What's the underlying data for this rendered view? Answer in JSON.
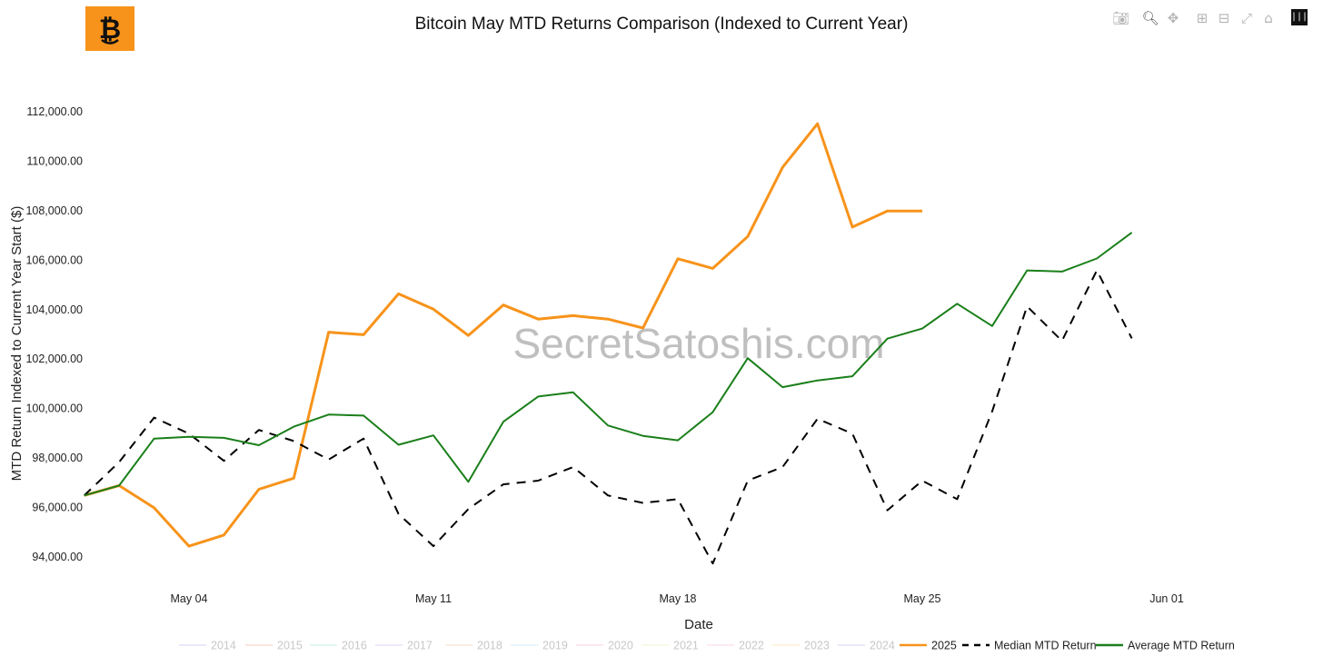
{
  "title": "Bitcoin May MTD Returns Comparison (Indexed to Current Year)",
  "watermark": "SecretSatoshis.com",
  "modebar": {
    "buttons": [
      "camera-icon",
      "zoom-icon",
      "pan-icon",
      "zoom-in-icon",
      "zoom-out-icon",
      "autoscale-icon",
      "reset-axes-icon",
      "plotly-logo-icon"
    ]
  },
  "chart_data": {
    "type": "line",
    "title": "Bitcoin May MTD Returns Comparison (Indexed to Current Year)",
    "xlabel": "Date",
    "ylabel": "MTD Return Indexed to Current Year Start ($)",
    "x_range_days": [
      1,
      31
    ],
    "y_range": [
      93000,
      113800
    ],
    "x_ticks": [
      {
        "day": 4,
        "label": "May 04"
      },
      {
        "day": 11,
        "label": "May 11"
      },
      {
        "day": 18,
        "label": "May 18"
      },
      {
        "day": 25,
        "label": "May 25"
      },
      {
        "day": 32,
        "label": "Jun 01"
      }
    ],
    "y_ticks": [
      {
        "value": 94000,
        "label": "94,000.00"
      },
      {
        "value": 96000,
        "label": "96,000.00"
      },
      {
        "value": 98000,
        "label": "98,000.00"
      },
      {
        "value": 100000,
        "label": "100,000.00"
      },
      {
        "value": 102000,
        "label": "102,000.00"
      },
      {
        "value": 104000,
        "label": "104,000.00"
      },
      {
        "value": 106000,
        "label": "106,000.00"
      },
      {
        "value": 108000,
        "label": "108,000.00"
      },
      {
        "value": 110000,
        "label": "110,000.00"
      },
      {
        "value": 112000,
        "label": "112,000.00"
      }
    ],
    "legend_position": "bottom-center",
    "legend": [
      {
        "name": "2014",
        "color": "#c7c9f2",
        "style": "solid",
        "faded": true
      },
      {
        "name": "2015",
        "color": "#f6c1b0",
        "style": "solid",
        "faded": true
      },
      {
        "name": "2016",
        "color": "#b7ece0",
        "style": "solid",
        "faded": true
      },
      {
        "name": "2017",
        "color": "#d9c8f5",
        "style": "solid",
        "faded": true
      },
      {
        "name": "2018",
        "color": "#fbd7b9",
        "style": "solid",
        "faded": true
      },
      {
        "name": "2019",
        "color": "#c2ecf5",
        "style": "solid",
        "faded": true
      },
      {
        "name": "2020",
        "color": "#f8c9d6",
        "style": "solid",
        "faded": true
      },
      {
        "name": "2021",
        "color": "#e6f3c8",
        "style": "solid",
        "faded": true
      },
      {
        "name": "2022",
        "color": "#f6cce6",
        "style": "solid",
        "faded": true
      },
      {
        "name": "2023",
        "color": "#fbe3b4",
        "style": "solid",
        "faded": true
      },
      {
        "name": "2024",
        "color": "#c7c9f2",
        "style": "solid",
        "faded": true
      },
      {
        "name": "2025",
        "color": "#f7931a",
        "style": "solid",
        "faded": false
      },
      {
        "name": "Median MTD Return",
        "color": "#000000",
        "style": "dash",
        "faded": false
      },
      {
        "name": "Average MTD Return",
        "color": "#1a7f1a",
        "style": "solid",
        "faded": false
      }
    ],
    "series": [
      {
        "name": "2025",
        "color": "#f7931a",
        "width": 3,
        "dash": false,
        "x": [
          1,
          2,
          3,
          4,
          5,
          6,
          7,
          8,
          9,
          10,
          11,
          12,
          13,
          14,
          15,
          16,
          17,
          18,
          19,
          20,
          21,
          22,
          23,
          24,
          25
        ],
        "values": [
          96450,
          96850,
          95950,
          94400,
          94850,
          96700,
          97150,
          103050,
          102950,
          104600,
          103980,
          102920,
          104150,
          103580,
          103720,
          103580,
          103220,
          106020,
          105630,
          106920,
          109720,
          111480,
          107300,
          107950,
          107950
        ]
      },
      {
        "name": "Median MTD Return",
        "color": "#000000",
        "width": 2,
        "dash": true,
        "x": [
          1,
          2,
          3,
          4,
          5,
          6,
          7,
          8,
          9,
          10,
          11,
          12,
          13,
          14,
          15,
          16,
          17,
          18,
          19,
          20,
          21,
          22,
          23,
          24,
          25,
          26,
          27,
          28,
          29,
          30,
          31
        ],
        "values": [
          96450,
          97800,
          99600,
          98950,
          97850,
          99100,
          98650,
          97900,
          98750,
          95700,
          94400,
          95900,
          96900,
          97050,
          97600,
          96450,
          96150,
          96300,
          93700,
          97050,
          97600,
          99550,
          98950,
          95850,
          97050,
          96300,
          99850,
          104100,
          102700,
          105550,
          102800
        ]
      },
      {
        "name": "Average MTD Return",
        "color": "#1a7f1a",
        "width": 2,
        "dash": false,
        "x": [
          1,
          2,
          3,
          4,
          5,
          6,
          7,
          8,
          9,
          10,
          11,
          12,
          13,
          14,
          15,
          16,
          17,
          18,
          19,
          20,
          21,
          22,
          23,
          24,
          25,
          26,
          27,
          28,
          29,
          30,
          31
        ],
        "values": [
          96450,
          96850,
          98750,
          98820,
          98780,
          98480,
          99230,
          99720,
          99680,
          98500,
          98880,
          97000,
          99430,
          100450,
          100620,
          99280,
          98860,
          98680,
          99820,
          102000,
          100830,
          101100,
          101270,
          102790,
          103200,
          104200,
          103300,
          105550,
          105500,
          106030,
          107080
        ]
      }
    ]
  }
}
